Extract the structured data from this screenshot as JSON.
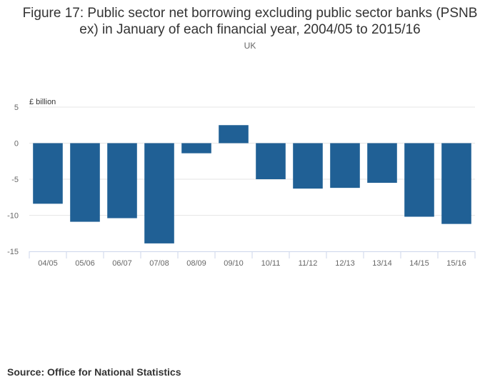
{
  "header": {
    "title_line1": "Figure 17: Public sector net borrowing excluding public sector banks (PSNB",
    "title_line2": "ex) in January of each financial year, 2004/05 to 2015/16",
    "subtitle": "UK"
  },
  "footer": {
    "source": "Source: Office for National Statistics"
  },
  "chart_data": {
    "type": "bar",
    "title": "Figure 17: Public sector net borrowing excluding public sector banks (PSNB ex) in January of each financial year, 2004/05 to 2015/16",
    "subtitle": "UK",
    "categories": [
      "04/05",
      "05/06",
      "06/07",
      "07/08",
      "08/09",
      "09/10",
      "10/11",
      "11/12",
      "12/13",
      "13/14",
      "14/15",
      "15/16"
    ],
    "values": [
      -8.4,
      -10.9,
      -10.4,
      -13.9,
      -1.4,
      2.5,
      -5.0,
      -6.3,
      -6.2,
      -5.5,
      -10.2,
      -11.2
    ],
    "ylabel": "£ billion",
    "xlabel": "",
    "ylim": [
      -15,
      5
    ],
    "yticks": [
      5,
      0,
      -5,
      -10,
      -15
    ],
    "ytick_labels": [
      "5",
      "0",
      "-5",
      "-10",
      "-15"
    ],
    "bar_color": "#206095",
    "grid": true,
    "legend": "none"
  }
}
